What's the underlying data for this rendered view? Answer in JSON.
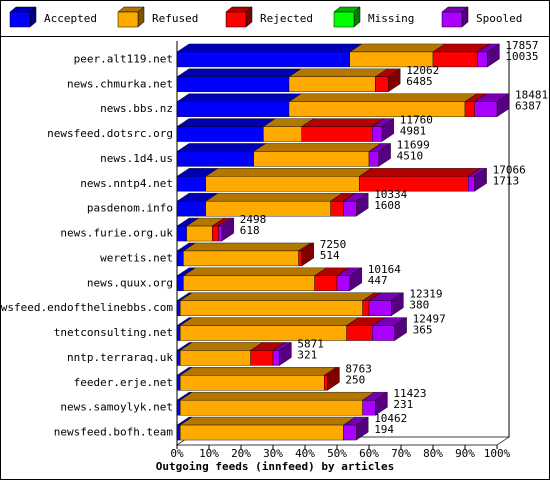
{
  "chart_data": {
    "type": "bar3d",
    "orientation": "horizontal",
    "stacked": true,
    "xlabel": "Outgoing feeds (innfeed) by articles",
    "categories": [
      "peer.alt119.net",
      "news.chmurka.net",
      "news.bbs.nz",
      "newsfeed.dotsrc.org",
      "news.1d4.us",
      "news.nntp4.net",
      "pasdenom.info",
      "news.furie.org.uk",
      "weretis.net",
      "news.quux.org",
      "newsfeed.endofthelinebbs.com",
      "tnetconsulting.net",
      "nntp.terraraq.uk",
      "feeder.erje.net",
      "news.samoylyk.net",
      "newsfeed.bofh.team"
    ],
    "series": [
      {
        "name": "Accepted",
        "color": "#0000ff",
        "values": [
          54,
          35,
          35,
          27,
          24,
          9,
          9,
          3,
          2,
          2,
          1,
          1,
          1,
          1,
          1,
          1
        ]
      },
      {
        "name": "Refused",
        "color": "#ffaa00",
        "values": [
          26,
          27,
          55,
          12,
          36,
          48,
          39,
          8,
          36,
          41,
          57,
          52,
          22,
          45,
          57,
          51
        ]
      },
      {
        "name": "Rejected",
        "color": "#ff0000",
        "values": [
          14,
          4,
          3,
          22,
          0,
          34,
          4,
          2,
          1,
          7,
          2,
          8,
          7,
          1,
          0,
          0
        ]
      },
      {
        "name": "Missing",
        "color": "#00ff00",
        "values": [
          0,
          0,
          0,
          0,
          0,
          0,
          0,
          0,
          0,
          0,
          0,
          0,
          0,
          0,
          0,
          0
        ]
      },
      {
        "name": "Spooled",
        "color": "#aa00ff",
        "values": [
          3,
          0,
          7,
          3,
          3,
          2,
          4,
          1,
          0,
          4,
          7,
          7,
          2,
          0,
          4,
          4
        ]
      }
    ],
    "totals": [
      [
        17857,
        10035
      ],
      [
        12062,
        6485
      ],
      [
        18481,
        6387
      ],
      [
        11760,
        4981
      ],
      [
        11699,
        4510
      ],
      [
        17066,
        1713
      ],
      [
        10334,
        1608
      ],
      [
        2498,
        618
      ],
      [
        7250,
        514
      ],
      [
        10164,
        447
      ],
      [
        12319,
        380
      ],
      [
        12497,
        365
      ],
      [
        5871,
        321
      ],
      [
        8763,
        250
      ],
      [
        11423,
        231
      ],
      [
        10462,
        194
      ]
    ],
    "xlim": [
      0,
      100
    ],
    "xticks": [
      {
        "value": 0,
        "label": "0%"
      },
      {
        "value": 10,
        "label": "10%"
      },
      {
        "value": 20,
        "label": "20%"
      },
      {
        "value": 30,
        "label": "30%"
      },
      {
        "value": 40,
        "label": "40%"
      },
      {
        "value": 50,
        "label": "50%"
      },
      {
        "value": 60,
        "label": "60%"
      },
      {
        "value": 70,
        "label": "70%"
      },
      {
        "value": 80,
        "label": "80%"
      },
      {
        "value": 90,
        "label": "90%"
      },
      {
        "value": 100,
        "label": "100%"
      }
    ],
    "legend": "top"
  }
}
